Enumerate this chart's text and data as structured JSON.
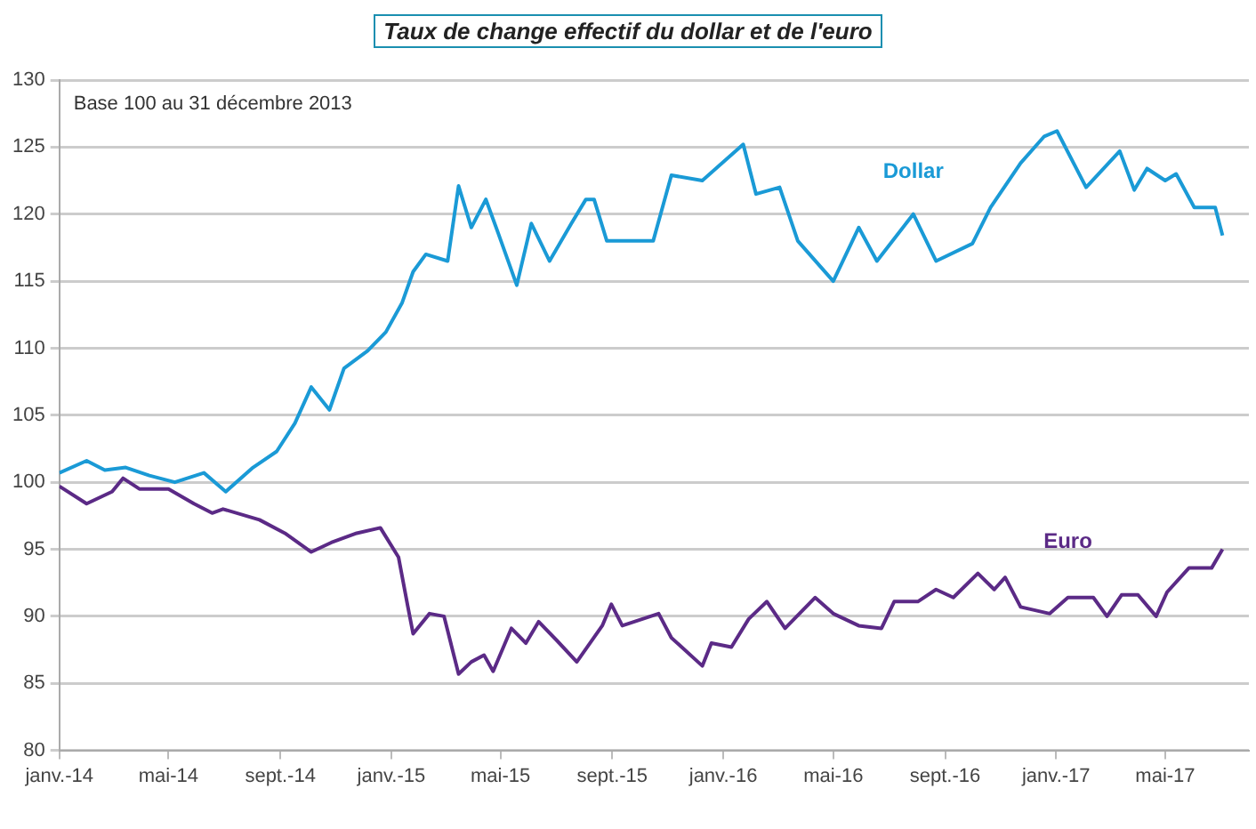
{
  "chart_data": {
    "type": "line",
    "title": "Taux de change effectif du dollar et de l'euro",
    "subtitle": "Base 100 au 31 décembre 2013",
    "series": [
      {
        "name": "Dollar",
        "color": "#1a9ad6",
        "x": [
          "2014-01-01",
          "2014-01-31",
          "2014-02-20",
          "2014-03-15",
          "2014-04-10",
          "2014-05-08",
          "2014-06-09",
          "2014-07-03",
          "2014-08-02",
          "2014-08-28",
          "2014-09-17",
          "2014-10-05",
          "2014-10-25",
          "2014-11-10",
          "2014-12-06",
          "2014-12-26",
          "2015-01-13",
          "2015-01-25",
          "2015-02-08",
          "2015-03-04",
          "2015-03-16",
          "2015-03-30",
          "2015-04-15",
          "2015-04-29",
          "2015-05-19",
          "2015-06-04",
          "2015-06-24",
          "2015-07-18",
          "2015-08-03",
          "2015-08-12",
          "2015-08-26",
          "2015-10-16",
          "2015-11-05",
          "2015-12-09",
          "2016-01-23",
          "2016-02-06",
          "2016-03-03",
          "2016-03-23",
          "2016-05-01",
          "2016-05-29",
          "2016-06-18",
          "2016-07-28",
          "2016-08-22",
          "2016-10-01",
          "2016-10-21",
          "2016-11-23",
          "2016-12-19",
          "2017-01-02",
          "2017-02-03",
          "2017-03-12",
          "2017-03-28",
          "2017-04-11",
          "2017-05-01",
          "2017-05-13",
          "2017-06-02",
          "2017-06-25",
          "2017-07-03"
        ],
        "values": [
          100.7,
          101.6,
          100.9,
          101.1,
          100.5,
          100,
          100.7,
          99.3,
          101.1,
          102.3,
          104.4,
          107.1,
          105.4,
          108.5,
          109.8,
          111.2,
          113.4,
          115.7,
          117,
          116.5,
          122.1,
          119,
          121.1,
          118.5,
          114.7,
          119.3,
          116.5,
          119.3,
          121.1,
          121.1,
          118,
          118,
          122.9,
          122.5,
          125.2,
          121.5,
          122,
          118,
          115,
          119,
          116.5,
          120,
          116.5,
          117.8,
          120.5,
          123.8,
          125.8,
          126.2,
          122,
          124.7,
          121.8,
          123.4,
          122.5,
          123,
          120.5,
          120.5,
          118.4
        ]
      },
      {
        "name": "Euro",
        "color": "#5b2a86",
        "x": [
          "2014-01-01",
          "2014-01-31",
          "2014-02-28",
          "2014-03-12",
          "2014-03-30",
          "2014-05-01",
          "2014-05-29",
          "2014-06-18",
          "2014-06-30",
          "2014-08-09",
          "2014-09-06",
          "2014-10-05",
          "2014-10-27",
          "2014-11-24",
          "2014-12-20",
          "2015-01-09",
          "2015-01-19",
          "2015-01-25",
          "2015-02-12",
          "2015-02-28",
          "2015-03-16",
          "2015-03-30",
          "2015-04-13",
          "2015-04-23",
          "2015-05-13",
          "2015-05-29",
          "2015-06-12",
          "2015-07-02",
          "2015-07-24",
          "2015-08-21",
          "2015-08-31",
          "2015-09-12",
          "2015-10-22",
          "2015-11-05",
          "2015-12-09",
          "2015-12-19",
          "2016-01-10",
          "2016-01-29",
          "2016-02-18",
          "2016-03-09",
          "2016-04-11",
          "2016-05-01",
          "2016-05-29",
          "2016-06-23",
          "2016-07-07",
          "2016-08-02",
          "2016-08-22",
          "2016-09-10",
          "2016-10-07",
          "2016-10-25",
          "2016-11-06",
          "2016-11-23",
          "2016-12-25",
          "2017-01-14",
          "2017-02-11",
          "2017-02-26",
          "2017-03-14",
          "2017-04-01",
          "2017-04-21",
          "2017-05-03",
          "2017-05-27",
          "2017-06-21",
          "2017-07-03"
        ],
        "values": [
          99.7,
          98.4,
          99.3,
          100.3,
          99.5,
          99.5,
          98.4,
          97.7,
          98,
          97.2,
          96.2,
          94.8,
          95.5,
          96.2,
          96.6,
          94.4,
          90.8,
          88.7,
          90.2,
          90,
          85.7,
          86.6,
          87.1,
          85.9,
          89.1,
          88,
          89.6,
          88.2,
          86.6,
          89.3,
          90.9,
          89.3,
          90.2,
          88.4,
          86.3,
          88,
          87.7,
          89.8,
          91.1,
          89.1,
          91.4,
          90.2,
          89.3,
          89.1,
          91.1,
          91.1,
          92,
          91.4,
          93.2,
          92,
          92.9,
          90.7,
          90.2,
          91.4,
          91.4,
          90,
          91.6,
          91.6,
          90,
          91.8,
          93.6,
          93.6,
          95
        ]
      }
    ],
    "xlim": [
      "2014-01-01",
      "2017-08-01"
    ],
    "xticks": [
      {
        "value": "2014-01-01",
        "label": "janv.-14"
      },
      {
        "value": "2014-05-01",
        "label": "mai-14"
      },
      {
        "value": "2014-09-01",
        "label": "sept.-14"
      },
      {
        "value": "2015-01-01",
        "label": "janv.-15"
      },
      {
        "value": "2015-05-01",
        "label": "mai-15"
      },
      {
        "value": "2015-09-01",
        "label": "sept.-15"
      },
      {
        "value": "2016-01-01",
        "label": "janv.-16"
      },
      {
        "value": "2016-05-01",
        "label": "mai-16"
      },
      {
        "value": "2016-09-01",
        "label": "sept.-16"
      },
      {
        "value": "2017-01-01",
        "label": "janv.-17"
      },
      {
        "value": "2017-05-01",
        "label": "mai-17"
      }
    ],
    "ylim": [
      80,
      130
    ],
    "yticks": [
      80,
      85,
      90,
      95,
      100,
      105,
      110,
      115,
      120,
      125,
      130
    ],
    "grid": "y",
    "legend": false,
    "marker": "none",
    "line_style": "solid"
  }
}
